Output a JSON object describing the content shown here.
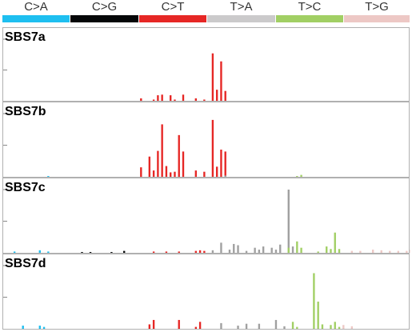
{
  "chart_data": {
    "type": "bar",
    "header": [
      {
        "label": "C>A",
        "color": "#1ebff0"
      },
      {
        "label": "C>G",
        "color": "#050708"
      },
      {
        "label": "C>T",
        "color": "#e62725"
      },
      {
        "label": "T>A",
        "color": "#cbcacb"
      },
      {
        "label": "T>C",
        "color": "#a1cf64"
      },
      {
        "label": "T>G",
        "color": "#edc8c5"
      }
    ],
    "axis_color": "#888888",
    "bar_colors": {
      "C>A": "#1ebff0",
      "C>G": "#050708",
      "C>T": "#e62725",
      "T>A": "#a0a0a0",
      "T>C": "#a1cf64",
      "T>G": "#edc8c5"
    },
    "ylim": [
      0,
      1
    ],
    "categories_per_group": 16,
    "panels": [
      {
        "title": "SBS7a",
        "series": {
          "C>A": [],
          "C>G": [],
          "C>T": [
            [
              0,
              0.04
            ],
            [
              3,
              0.02
            ],
            [
              4,
              0.09
            ],
            [
              5,
              0.1
            ],
            [
              7,
              0.09
            ],
            [
              8,
              0.02
            ],
            [
              10,
              0.1
            ],
            [
              13,
              0.04
            ],
            [
              15,
              0.02
            ],
            [
              17,
              0.77
            ],
            [
              18,
              0.18
            ],
            [
              19,
              0.64
            ],
            [
              20,
              0.16
            ]
          ],
          "T>A": [],
          "T>C": [],
          "T>G": []
        }
      },
      {
        "title": "SBS7b",
        "series": {
          "C>A": [
            [
              10,
              0.01
            ]
          ],
          "C>G": [],
          "C>T": [
            [
              0,
              0.15
            ],
            [
              2,
              0.32
            ],
            [
              3,
              0.1
            ],
            [
              4,
              0.41
            ],
            [
              5,
              0.83
            ],
            [
              6,
              0.17
            ],
            [
              7,
              0.07
            ],
            [
              8,
              0.08
            ],
            [
              9,
              0.66
            ],
            [
              10,
              0.4
            ],
            [
              13,
              0.1
            ],
            [
              15,
              0.08
            ],
            [
              17,
              0.9
            ],
            [
              18,
              0.16
            ],
            [
              19,
              0.43
            ],
            [
              20,
              0.4
            ]
          ],
          "T>A": [
            [
              4,
              0.02
            ]
          ],
          "T>C": [
            [
              5,
              0.01
            ],
            [
              6,
              0.03
            ]
          ],
          "T>G": []
        }
      },
      {
        "title": "SBS7c",
        "series": {
          "C>A": [
            [
              2,
              0.02
            ],
            [
              8,
              0.04
            ],
            [
              10,
              0.02
            ]
          ],
          "C>G": [
            [
              2,
              0.01
            ],
            [
              4,
              0.01
            ],
            [
              9,
              0.01
            ],
            [
              12,
              0.03
            ]
          ],
          "C>T": [
            [
              3,
              0.02
            ],
            [
              6,
              0.02
            ],
            [
              9,
              0.02
            ],
            [
              13,
              0.03
            ],
            [
              14,
              0.04
            ],
            [
              15,
              0.03
            ]
          ],
          "T>A": [
            [
              1,
              0.04
            ],
            [
              3,
              0.16
            ],
            [
              5,
              0.05
            ],
            [
              6,
              0.14
            ],
            [
              7,
              0.12
            ],
            [
              9,
              0.03
            ],
            [
              11,
              0.08
            ],
            [
              12,
              0.05
            ],
            [
              13,
              0.1
            ],
            [
              15,
              0.08
            ],
            [
              16,
              0.05
            ],
            [
              17,
              0.13
            ],
            [
              19,
              1.0
            ],
            [
              20,
              0.1
            ]
          ],
          "T>C": [
            [
              3,
              0.08
            ],
            [
              5,
              0.18
            ],
            [
              6,
              0.08
            ],
            [
              10,
              0.02
            ],
            [
              12,
              0.1
            ],
            [
              13,
              0.06
            ],
            [
              14,
              0.32
            ],
            [
              15,
              0.06
            ]
          ],
          "T>G": [
            [
              2,
              0.03
            ],
            [
              4,
              0.03
            ],
            [
              7,
              0.05
            ],
            [
              9,
              0.04
            ],
            [
              11,
              0.03
            ],
            [
              13,
              0.03
            ],
            [
              15,
              0.03
            ],
            [
              16,
              0.05
            ]
          ]
        }
      },
      {
        "title": "SBS7d",
        "series": {
          "C>A": [
            [
              4,
              0.05
            ],
            [
              8,
              0.05
            ],
            [
              9,
              0.03
            ]
          ],
          "C>G": [],
          "C>T": [
            [
              2,
              0.07
            ],
            [
              3,
              0.14
            ],
            [
              9,
              0.14
            ],
            [
              13,
              0.03
            ],
            [
              14,
              0.11
            ]
          ],
          "T>A": [
            [
              3,
              0.09
            ],
            [
              7,
              0.05
            ],
            [
              9,
              0.08
            ],
            [
              12,
              0.08
            ],
            [
              16,
              0.14
            ],
            [
              18,
              0.04
            ]
          ],
          "T>C": [
            [
              4,
              0.11
            ],
            [
              5,
              0.03
            ],
            [
              9,
              0.88
            ],
            [
              10,
              0.43
            ],
            [
              11,
              0.07
            ],
            [
              13,
              0.06
            ],
            [
              14,
              0.11
            ],
            [
              15,
              0.03
            ]
          ],
          "T>G": [
            [
              0,
              0.06
            ],
            [
              2,
              0.04
            ]
          ]
        }
      }
    ]
  }
}
